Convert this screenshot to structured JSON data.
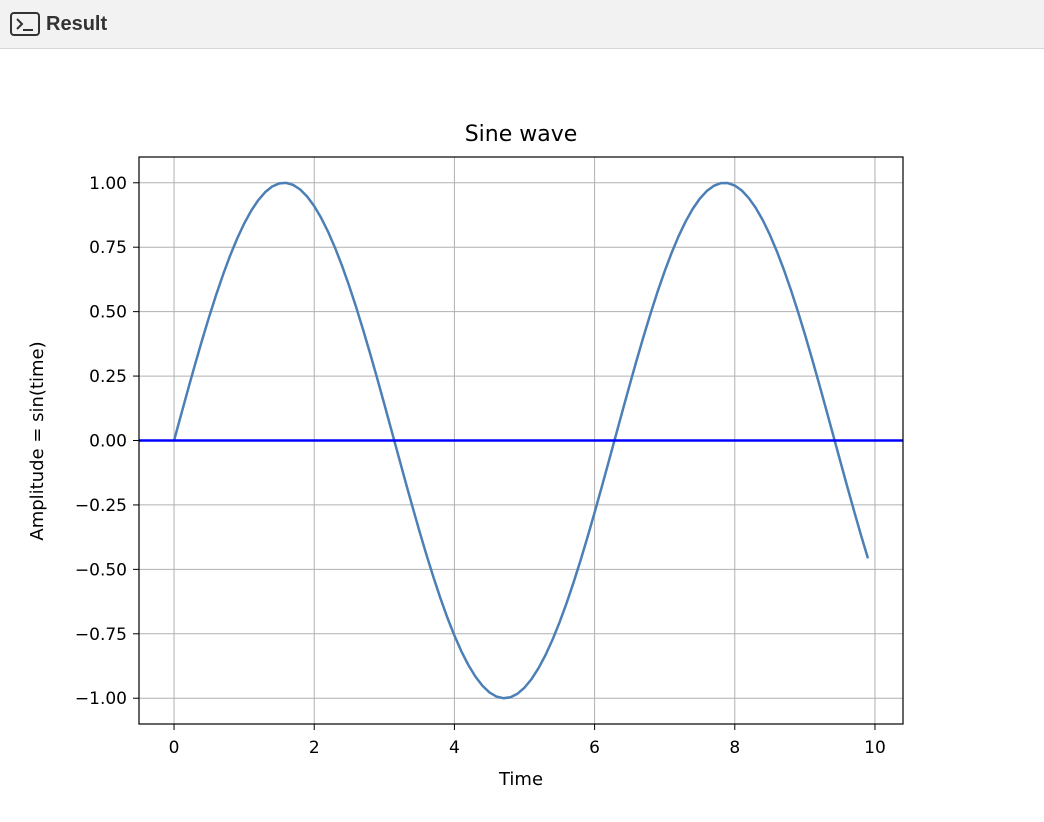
{
  "header": {
    "title": "Result",
    "icon": "terminal-icon"
  },
  "chart_data": {
    "type": "line",
    "title": "Sine wave",
    "xlabel": "Time",
    "ylabel": "Amplitude = sin(time)",
    "xlim": [
      -0.5,
      10.4
    ],
    "ylim": [
      -1.1,
      1.1
    ],
    "xticks": [
      0,
      2,
      4,
      6,
      8,
      10
    ],
    "xtick_labels": [
      "0",
      "2",
      "4",
      "6",
      "8",
      "10"
    ],
    "yticks": [
      1.0,
      0.75,
      0.5,
      0.25,
      0.0,
      -0.25,
      -0.5,
      -0.75,
      -1.0
    ],
    "ytick_labels": [
      "1.00",
      "0.75",
      "0.50",
      "0.25",
      "0.00",
      "−0.25",
      "−0.50",
      "−0.75",
      "−1.00"
    ],
    "grid": true,
    "x_start": 0,
    "x_end": 9.9,
    "x_step": 0.1,
    "function": "sin",
    "series": [
      {
        "color": "#4c7fb5"
      }
    ],
    "hline": {
      "y": 0,
      "color": "#0000ff"
    }
  }
}
